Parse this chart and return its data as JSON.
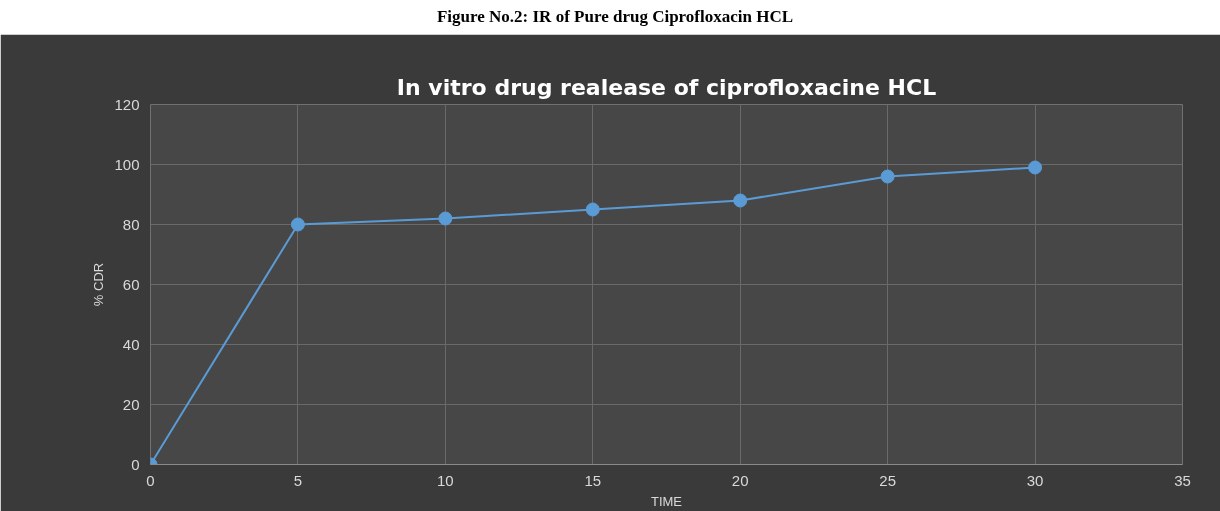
{
  "chart_data": {
    "type": "line",
    "title": "In vitro drug realease of ciprofloxacine HCL",
    "xlabel": "TIME",
    "ylabel": "% CDR",
    "annotations": [
      "Figure No.2: IR of Pure drug Ciprofloxacin HCL"
    ],
    "x": [
      0,
      5,
      10,
      15,
      20,
      25,
      30
    ],
    "series": [
      {
        "color": "#5b9bd5",
        "values": [
          0,
          80,
          82,
          85,
          88,
          96,
          99
        ]
      }
    ],
    "xlim": [
      0,
      35
    ],
    "xticks": [
      0,
      5,
      10,
      15,
      20,
      25,
      30,
      35
    ],
    "ylim": [
      0,
      120
    ],
    "yticks": [
      0,
      20,
      40,
      60,
      80,
      100,
      120
    ],
    "grid": true,
    "marker": "circle",
    "line_style": "solid"
  }
}
